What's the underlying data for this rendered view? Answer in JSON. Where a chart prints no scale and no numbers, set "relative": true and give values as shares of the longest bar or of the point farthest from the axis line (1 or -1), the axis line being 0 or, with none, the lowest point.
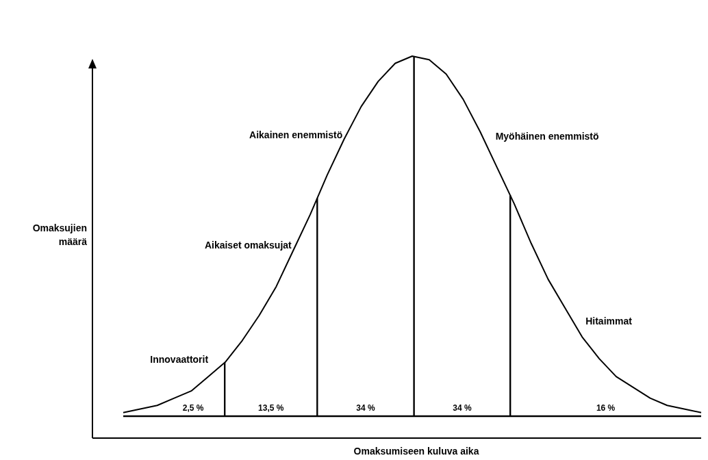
{
  "chart_data": {
    "type": "line",
    "relative": true,
    "xlabel": "Omaksumiseen kuluva aika",
    "ylabel": "Omaksujien määrä",
    "categories": [
      null,
      null,
      null,
      null,
      null,
      null,
      null,
      null,
      null,
      null,
      null,
      null,
      null,
      null,
      null,
      null,
      null,
      null,
      null,
      null,
      null,
      null,
      null,
      null,
      null,
      null,
      null,
      null,
      null,
      null,
      null,
      null,
      null,
      null,
      null
    ],
    "series": [
      {
        "color": "#000000",
        "values": [
          0.01,
          0.02,
          0.03,
          0.05,
          0.07,
          0.11,
          0.15,
          0.21,
          0.28,
          0.36,
          0.46,
          0.56,
          0.67,
          0.77,
          0.86,
          0.93,
          0.98,
          1.0,
          0.99,
          0.95,
          0.88,
          0.79,
          0.69,
          0.59,
          0.48,
          0.38,
          0.3,
          0.22,
          0.16,
          0.11,
          0.08,
          0.05,
          0.03,
          0.02,
          0.01
        ]
      }
    ],
    "annotations": [
      "Innovaattorit",
      "Aikaiset omaksujat",
      "Aikainen enemmistö",
      "Myöhäinen enemmistö",
      "Hitaimmat",
      "2,5 %",
      "13,5 %",
      "34 %",
      "34 %",
      "16 %"
    ]
  }
}
